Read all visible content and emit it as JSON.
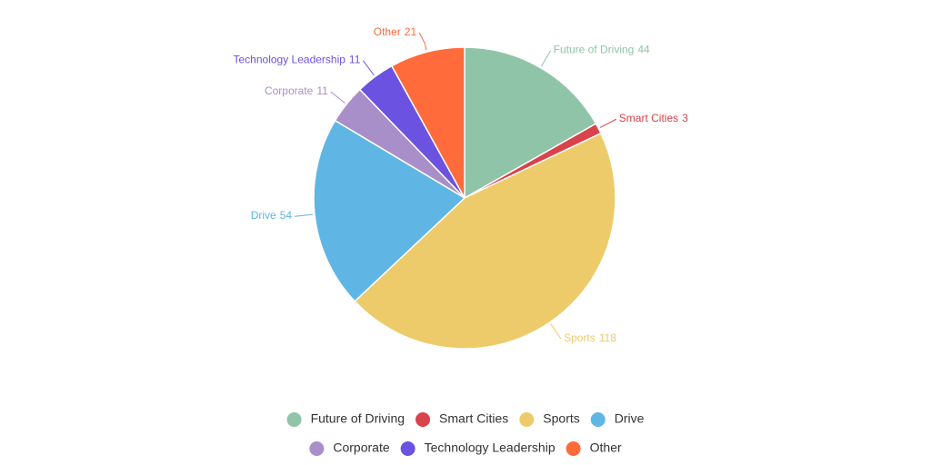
{
  "chart_data": {
    "type": "pie",
    "categories": [
      "Future of Driving",
      "Smart Cities",
      "Sports",
      "Drive",
      "Corporate",
      "Technology Leadership",
      "Other"
    ],
    "values": [
      44,
      3,
      118,
      54,
      11,
      11,
      21
    ],
    "colors": [
      "#8fc4a8",
      "#d9434c",
      "#eecb6a",
      "#5fb6e4",
      "#a98fca",
      "#6b52e0",
      "#ff6b3a"
    ]
  }
}
